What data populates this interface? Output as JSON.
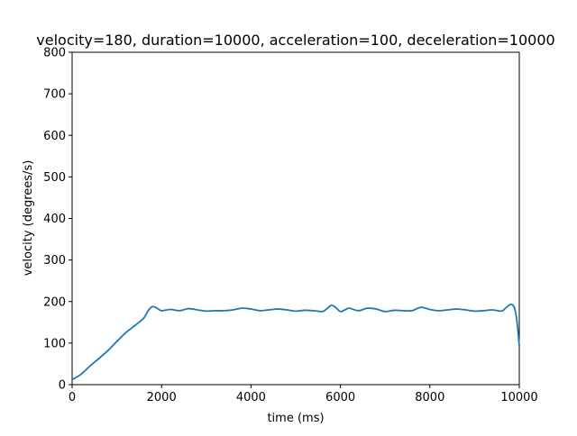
{
  "chart_data": {
    "type": "line",
    "title": "velocity=180, duration=10000, acceleration=100, deceleration=10000",
    "xlabel": "time (ms)",
    "ylabel": "velocity (degrees/s)",
    "xlim": [
      0,
      10000
    ],
    "ylim": [
      0,
      800
    ],
    "x_ticks": [
      0,
      2000,
      4000,
      6000,
      8000,
      10000
    ],
    "y_ticks": [
      0,
      100,
      200,
      300,
      400,
      500,
      600,
      700,
      800
    ],
    "grid": false,
    "legend": "none",
    "line_color": "#1f77b4",
    "series": [
      {
        "x": [
          0,
          200,
          400,
          600,
          800,
          1000,
          1200,
          1400,
          1600,
          1700,
          1800,
          1900,
          2000,
          2200,
          2400,
          2600,
          2800,
          3000,
          3200,
          3400,
          3600,
          3800,
          4000,
          4200,
          4400,
          4600,
          4800,
          5000,
          5200,
          5400,
          5600,
          5700,
          5800,
          5900,
          6000,
          6100,
          6200,
          6400,
          6600,
          6800,
          7000,
          7200,
          7400,
          7600,
          7800,
          8000,
          8200,
          8400,
          8600,
          8800,
          9000,
          9200,
          9400,
          9600,
          9700,
          9800,
          9850,
          9900,
          9950,
          10000
        ],
        "y": [
          12,
          25,
          45,
          63,
          82,
          104,
          125,
          142,
          160,
          178,
          188,
          184,
          178,
          181,
          178,
          183,
          180,
          177,
          178,
          178,
          180,
          184,
          182,
          178,
          180,
          182,
          180,
          177,
          179,
          178,
          176,
          183,
          191,
          185,
          176,
          180,
          184,
          178,
          184,
          182,
          176,
          179,
          178,
          178,
          186,
          181,
          178,
          180,
          182,
          180,
          177,
          178,
          180,
          177,
          185,
          193,
          192,
          182,
          150,
          93
        ]
      }
    ]
  }
}
